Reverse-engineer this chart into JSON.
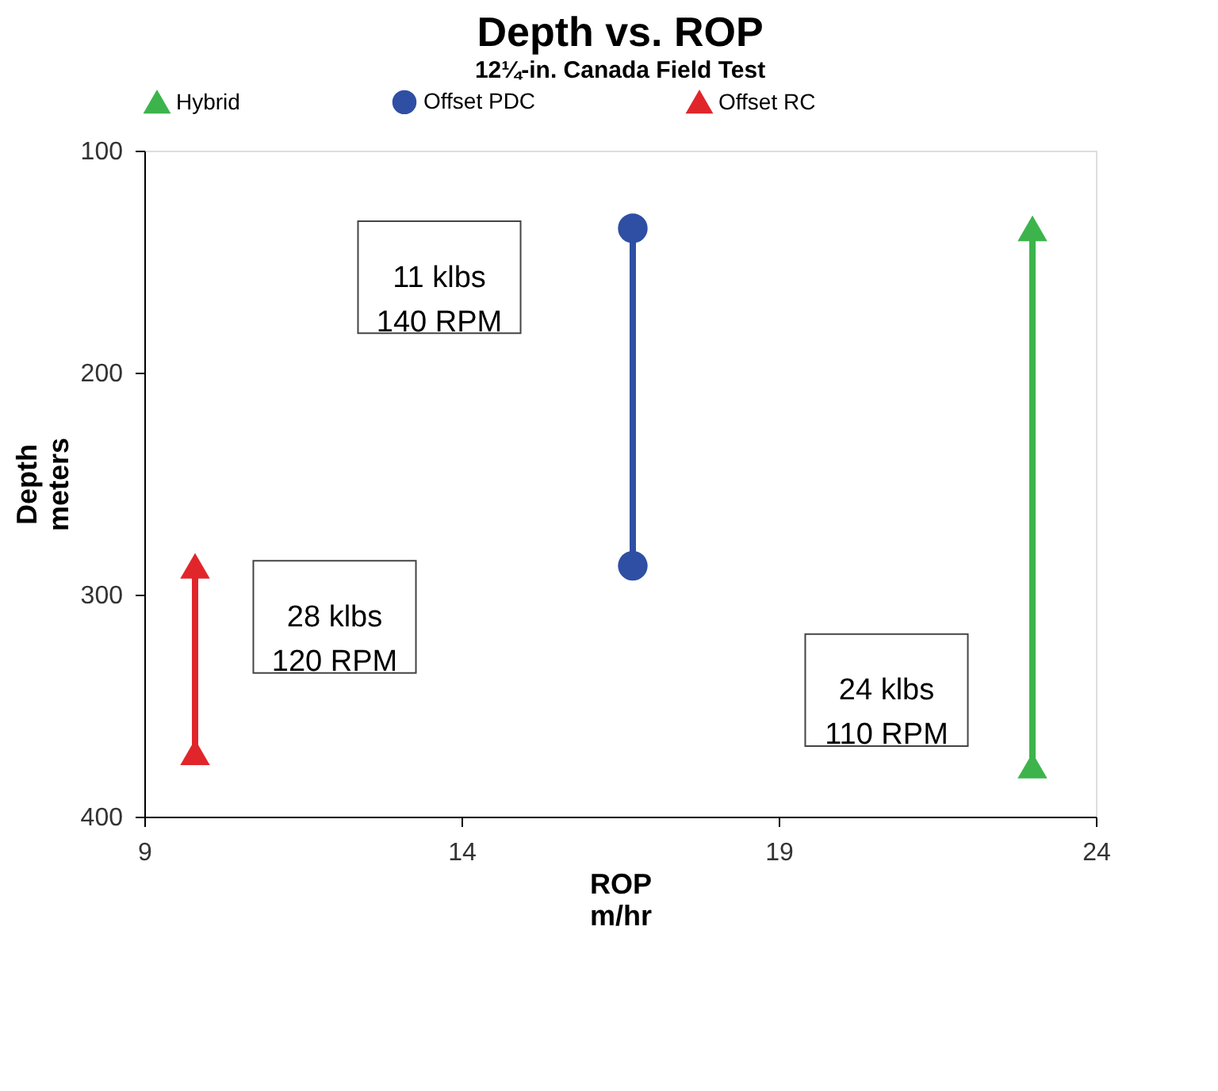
{
  "chart_data": {
    "type": "line",
    "title": "Depth vs. ROP",
    "subtitle": "12¼-in. Canada Field Test",
    "xlabel": "ROP\nm/hr",
    "ylabel": "Depth\nmeters",
    "series": [
      {
        "name": "Hybrid",
        "color": "#3cb44b",
        "x": [
          23.0,
          23.0
        ],
        "values": [
          135,
          377
        ],
        "marker": "triangle"
      },
      {
        "name": "Offset PDC",
        "color": "#2e4fa3",
        "x": [
          16.7,
          16.7
        ],
        "values": [
          135,
          287
        ],
        "marker": "circle"
      },
      {
        "name": "Offset RC",
        "color": "#e0262b",
        "x": [
          9.8,
          9.8
        ],
        "values": [
          287,
          371
        ],
        "marker": "triangle"
      }
    ],
    "annotations": [
      "11 klbs\n140 RPM",
      "28 klbs\n120 RPM",
      "24 klbs\n110 RPM"
    ],
    "xlim": [
      9,
      24
    ],
    "xticks": [
      9,
      14,
      19,
      24
    ],
    "ylim": [
      400,
      100
    ],
    "yticks": [
      100,
      200,
      300,
      400
    ],
    "grid": false,
    "legend": "top"
  }
}
